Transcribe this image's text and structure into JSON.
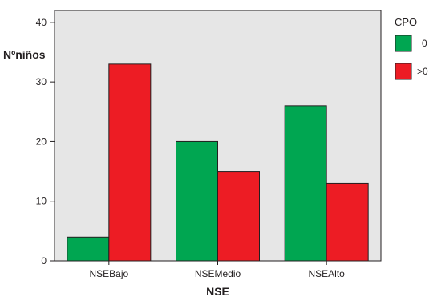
{
  "chart_data": {
    "type": "bar",
    "categories": [
      "NSEBajo",
      "NSEMedio",
      "NSEAlto"
    ],
    "series": [
      {
        "name": "0",
        "values": [
          4,
          20,
          26
        ],
        "color": "#00a651"
      },
      {
        "name": ">0",
        "values": [
          33,
          15,
          13
        ],
        "color": "#ed1c24"
      }
    ],
    "xlabel": "NSE",
    "ylabel": "Nºniños",
    "yticks": [
      0,
      10,
      20,
      30,
      40
    ],
    "ylim": [
      0,
      42
    ],
    "grid": false,
    "plot_background": "#e6e6e6",
    "legend": {
      "title": "CPO",
      "placement": "right"
    }
  }
}
